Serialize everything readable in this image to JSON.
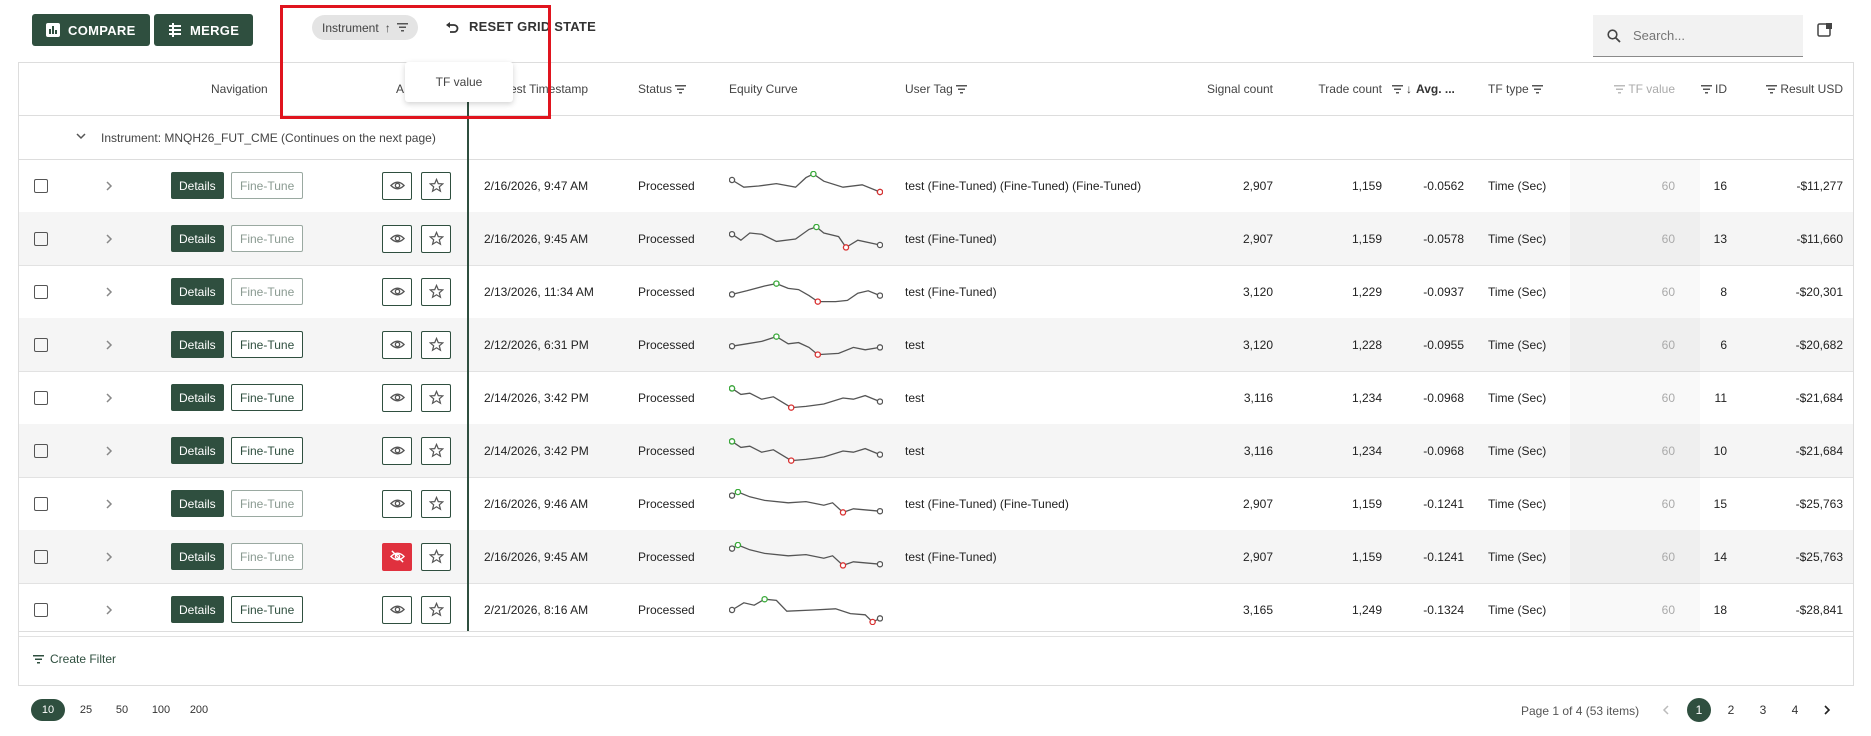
{
  "toolbar": {
    "compare_label": "COMPARE",
    "merge_label": "MERGE",
    "reset_label": "RESET GRID STATE",
    "search_placeholder": "Search..."
  },
  "group_chip": {
    "label": "Instrument",
    "sort_icon": "arrow-up-icon",
    "filter_icon": "filter-icon"
  },
  "column_menu": {
    "item": "TF value"
  },
  "columns": {
    "navigation": "Navigation",
    "actions": "A",
    "timestamp": "est Timestamp",
    "status": "Status",
    "equity": "Equity Curve",
    "user_tag": "User Tag",
    "signal_count": "Signal count",
    "trade_count": "Trade count",
    "avg": "Avg. ...",
    "tf_type": "TF type",
    "tf_value": "TF value",
    "id": "ID",
    "result": "Result USD"
  },
  "group_row": {
    "label": "Instrument: MNQH26_FUT_CME (Continues on the next page)"
  },
  "row_buttons": {
    "details": "Details",
    "finetune": "Fine-Tune"
  },
  "rows": [
    {
      "timestamp": "2/16/2026, 9:47 AM",
      "status": "Processed",
      "user_tag": "test (Fine-Tuned) (Fine-Tuned) (Fine-Tuned)",
      "signal_count": "2,907",
      "trade_count": "1,159",
      "avg": "-0.0562",
      "tf_type": "Time (Sec)",
      "tf_value": "60",
      "id": "16",
      "result": "-$11,277",
      "finetune_enabled": false,
      "hidden": false
    },
    {
      "timestamp": "2/16/2026, 9:45 AM",
      "status": "Processed",
      "user_tag": "test (Fine-Tuned)",
      "signal_count": "2,907",
      "trade_count": "1,159",
      "avg": "-0.0578",
      "tf_type": "Time (Sec)",
      "tf_value": "60",
      "id": "13",
      "result": "-$11,660",
      "finetune_enabled": false,
      "hidden": false
    },
    {
      "timestamp": "2/13/2026, 11:34 AM",
      "status": "Processed",
      "user_tag": "test (Fine-Tuned)",
      "signal_count": "3,120",
      "trade_count": "1,229",
      "avg": "-0.0937",
      "tf_type": "Time (Sec)",
      "tf_value": "60",
      "id": "8",
      "result": "-$20,301",
      "finetune_enabled": false,
      "hidden": false
    },
    {
      "timestamp": "2/12/2026, 6:31 PM",
      "status": "Processed",
      "user_tag": "test",
      "signal_count": "3,120",
      "trade_count": "1,228",
      "avg": "-0.0955",
      "tf_type": "Time (Sec)",
      "tf_value": "60",
      "id": "6",
      "result": "-$20,682",
      "finetune_enabled": true,
      "hidden": false
    },
    {
      "timestamp": "2/14/2026, 3:42 PM",
      "status": "Processed",
      "user_tag": "test",
      "signal_count": "3,116",
      "trade_count": "1,234",
      "avg": "-0.0968",
      "tf_type": "Time (Sec)",
      "tf_value": "60",
      "id": "11",
      "result": "-$21,684",
      "finetune_enabled": true,
      "hidden": false
    },
    {
      "timestamp": "2/14/2026, 3:42 PM",
      "status": "Processed",
      "user_tag": "test",
      "signal_count": "3,116",
      "trade_count": "1,234",
      "avg": "-0.0968",
      "tf_type": "Time (Sec)",
      "tf_value": "60",
      "id": "10",
      "result": "-$21,684",
      "finetune_enabled": true,
      "hidden": false
    },
    {
      "timestamp": "2/16/2026, 9:46 AM",
      "status": "Processed",
      "user_tag": "test (Fine-Tuned) (Fine-Tuned)",
      "signal_count": "2,907",
      "trade_count": "1,159",
      "avg": "-0.1241",
      "tf_type": "Time (Sec)",
      "tf_value": "60",
      "id": "15",
      "result": "-$25,763",
      "finetune_enabled": false,
      "hidden": false
    },
    {
      "timestamp": "2/16/2026, 9:45 AM",
      "status": "Processed",
      "user_tag": "test (Fine-Tuned)",
      "signal_count": "2,907",
      "trade_count": "1,159",
      "avg": "-0.1241",
      "tf_type": "Time (Sec)",
      "tf_value": "60",
      "id": "14",
      "result": "-$25,763",
      "finetune_enabled": false,
      "hidden": true
    },
    {
      "timestamp": "2/21/2026, 8:16 AM",
      "status": "Processed",
      "user_tag": "",
      "signal_count": "3,165",
      "trade_count": "1,249",
      "avg": "-0.1324",
      "tf_type": "Time (Sec)",
      "tf_value": "60",
      "id": "18",
      "result": "-$28,841",
      "finetune_enabled": true,
      "hidden": false
    }
  ],
  "sparkline_colors": {
    "line": "#555555",
    "max": "#3aaa3a",
    "min": "#d93030"
  },
  "footer": {
    "create_filter": "Create Filter"
  },
  "pagination": {
    "page_sizes": [
      "10",
      "25",
      "50",
      "100",
      "200"
    ],
    "selected_size": "10",
    "info": "Page 1 of 4 (53 items)",
    "pages": [
      "1",
      "2",
      "3",
      "4"
    ],
    "current_page": "1"
  },
  "colors": {
    "accent": "#2f4f3f",
    "highlight": "#e0141e",
    "hidden_toggle": "#e0313e"
  }
}
